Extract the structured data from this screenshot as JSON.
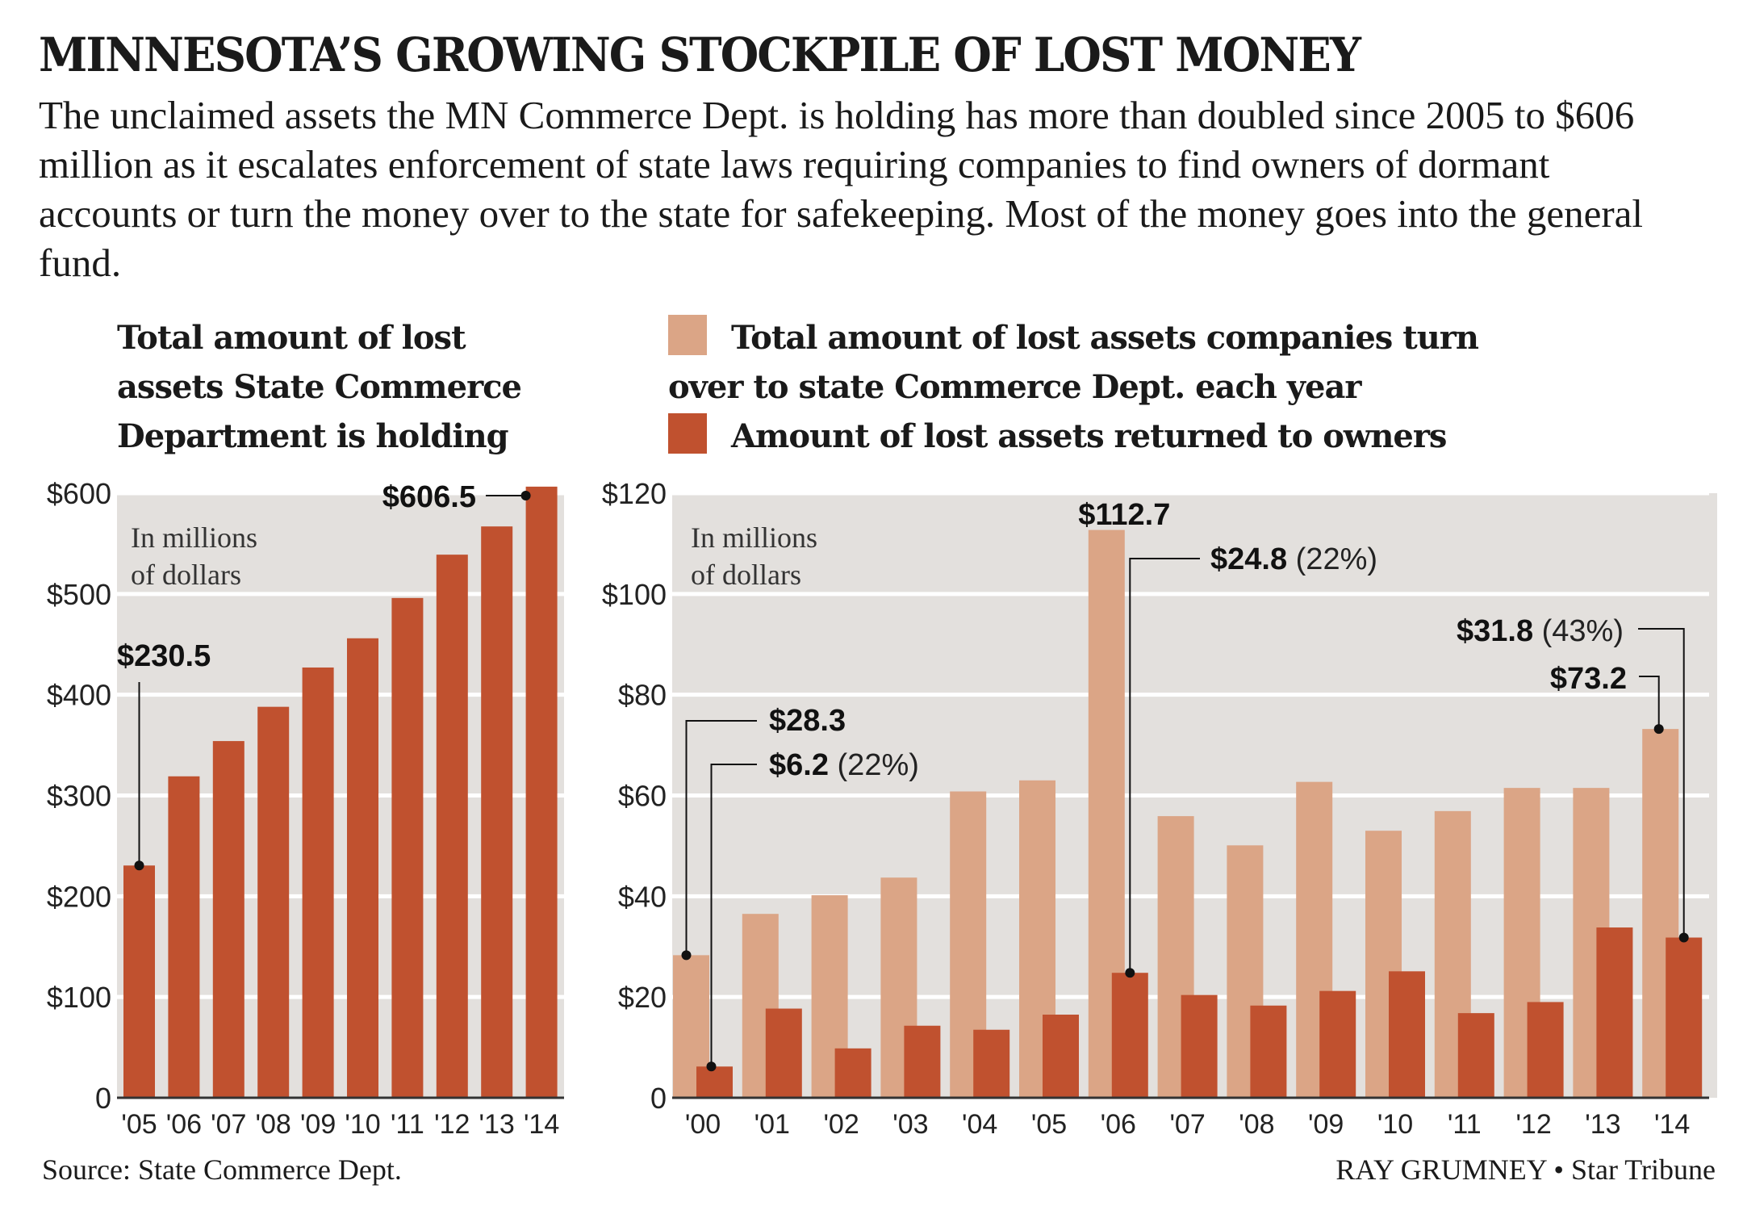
{
  "headline": "MINNESOTA’S GROWING STOCKPILE OF LOST MONEY",
  "intro": "The unclaimed assets the MN Commerce Dept. is holding has more than doubled since 2005 to $606 million as it escalates enforcement of state laws requiring companies to find owners of dormant accounts or turn the money over to the state for safekeeping. Most of the money goes into the general fund.",
  "colors": {
    "holding_bar": "#c0512f",
    "turned_over_bar": "#dba586",
    "returned_bar": "#c0512f",
    "plot_background": "#e3e0dd",
    "gridline": "#ffffff",
    "text": "#1a1a1a"
  },
  "footer": {
    "source": "Source: State Commerce Dept.",
    "credit": "RAY GRUMNEY • Star Tribune"
  },
  "chart_data": [
    {
      "type": "bar",
      "title": "Total amount of lost assets State Commerce Department is holding",
      "unit_note": [
        "In millions",
        "of dollars"
      ],
      "xlabel": "",
      "ylabel": "",
      "categories": [
        "'05",
        "'06",
        "'07",
        "'08",
        "'09",
        "'10",
        "'11",
        "'12",
        "'13",
        "'14"
      ],
      "values": [
        230.5,
        319,
        354,
        388,
        427,
        456,
        496,
        539,
        567,
        606.5
      ],
      "ylim": [
        0,
        600
      ],
      "yticks": [
        0,
        100,
        200,
        300,
        400,
        500,
        600
      ],
      "ytick_labels": [
        "0",
        "$100",
        "$200",
        "$300",
        "$400",
        "$500",
        "$600"
      ],
      "grid": true,
      "annotations": [
        {
          "category": "'05",
          "label": "$230.5"
        },
        {
          "category": "'14",
          "label": "$606.5"
        }
      ]
    },
    {
      "type": "bar",
      "title": "",
      "unit_note": [
        "In millions",
        "of dollars"
      ],
      "xlabel": "",
      "ylabel": "",
      "categories": [
        "'00",
        "'01",
        "'02",
        "'03",
        "'04",
        "'05",
        "'06",
        "'07",
        "'08",
        "'09",
        "'10",
        "'11",
        "'12",
        "'13",
        "'14"
      ],
      "series": [
        {
          "name": "Total amount of lost assets companies turn over to state Commerce Dept. each year",
          "values": [
            28.3,
            36.5,
            40.2,
            43.7,
            60.8,
            63.0,
            112.7,
            55.9,
            50.1,
            62.7,
            53.0,
            56.9,
            61.5,
            61.5,
            73.2
          ]
        },
        {
          "name": "Amount of lost assets returned to owners",
          "values": [
            6.2,
            17.7,
            9.8,
            14.3,
            13.5,
            16.5,
            24.8,
            20.4,
            18.3,
            21.2,
            25.1,
            16.8,
            19.0,
            33.8,
            31.8
          ]
        }
      ],
      "ylim": [
        0,
        120
      ],
      "yticks": [
        0,
        20,
        40,
        60,
        80,
        100,
        120
      ],
      "ytick_labels": [
        "0",
        "$20",
        "$40",
        "$60",
        "$80",
        "$100",
        "$120"
      ],
      "grid": true,
      "legend": "top",
      "annotations": [
        {
          "category": "'00",
          "series": 0,
          "label": "$28.3",
          "note": ""
        },
        {
          "category": "'00",
          "series": 1,
          "label": "$6.2",
          "note": "(22%)"
        },
        {
          "category": "'06",
          "series": 0,
          "label": "$112.7",
          "note": ""
        },
        {
          "category": "'06",
          "series": 1,
          "label": "$24.8",
          "note": "(22%)"
        },
        {
          "category": "'14",
          "series": 1,
          "label": "$31.8",
          "note": "(43%)"
        },
        {
          "category": "'14",
          "series": 0,
          "label": "$73.2",
          "note": ""
        }
      ]
    }
  ]
}
